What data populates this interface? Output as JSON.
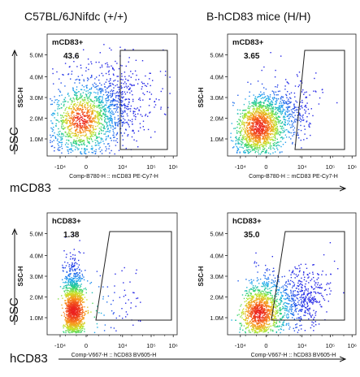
{
  "columns": [
    "C57BL/6JNifdc (+/+)",
    "B-hCD83 mice (H/H)"
  ],
  "row_labels": {
    "side": "SSC",
    "row1_marker": "mCD83",
    "row2_marker": "hCD83"
  },
  "chart_data": [
    {
      "type": "scatter",
      "title": "",
      "xlabel": "Comp-B780-H :: mCD83 PE-Cy7-H",
      "ylabel": "SSC-H",
      "x_ticks": [
        "-10⁴",
        "0",
        "10⁴",
        "10⁵",
        "10⁶"
      ],
      "y_ticks": [
        "1.0M",
        "2.0M",
        "3.0M",
        "4.0M",
        "5.0M"
      ],
      "gate": {
        "name": "mCD83+",
        "percent": "43.6"
      },
      "distribution": "broad"
    },
    {
      "type": "scatter",
      "title": "",
      "xlabel": "Comp-B780-H :: mCD83 PE-Cy7-H",
      "ylabel": "SSC-H",
      "x_ticks": [
        "-10⁴",
        "0",
        "10⁴",
        "10⁵",
        "10⁶"
      ],
      "y_ticks": [
        "1.0M",
        "2.0M",
        "3.0M",
        "4.0M",
        "5.0M"
      ],
      "gate": {
        "name": "mCD83+",
        "percent": "3.65"
      },
      "distribution": "mid"
    },
    {
      "type": "scatter",
      "title": "",
      "xlabel": "Comp-V667-H :: hCD83 BV605-H",
      "ylabel": "SSC-H",
      "x_ticks": [
        "-10⁴",
        "0",
        "10⁴",
        "10⁵",
        "10⁶"
      ],
      "y_ticks": [
        "1.0M",
        "2.0M",
        "3.0M",
        "4.0M",
        "5.0M"
      ],
      "gate": {
        "name": "hCD83+",
        "percent": "1.38"
      },
      "distribution": "narrow"
    },
    {
      "type": "scatter",
      "title": "",
      "xlabel": "Comp-V667-H :: hCD83 BV605-H",
      "ylabel": "SSC-H",
      "x_ticks": [
        "-10⁴",
        "0",
        "10⁴",
        "10⁵",
        "10⁶"
      ],
      "y_ticks": [
        "1.0M",
        "2.0M",
        "3.0M",
        "4.0M",
        "5.0M"
      ],
      "gate": {
        "name": "hCD83+",
        "percent": "35.0"
      },
      "distribution": "spread"
    }
  ]
}
